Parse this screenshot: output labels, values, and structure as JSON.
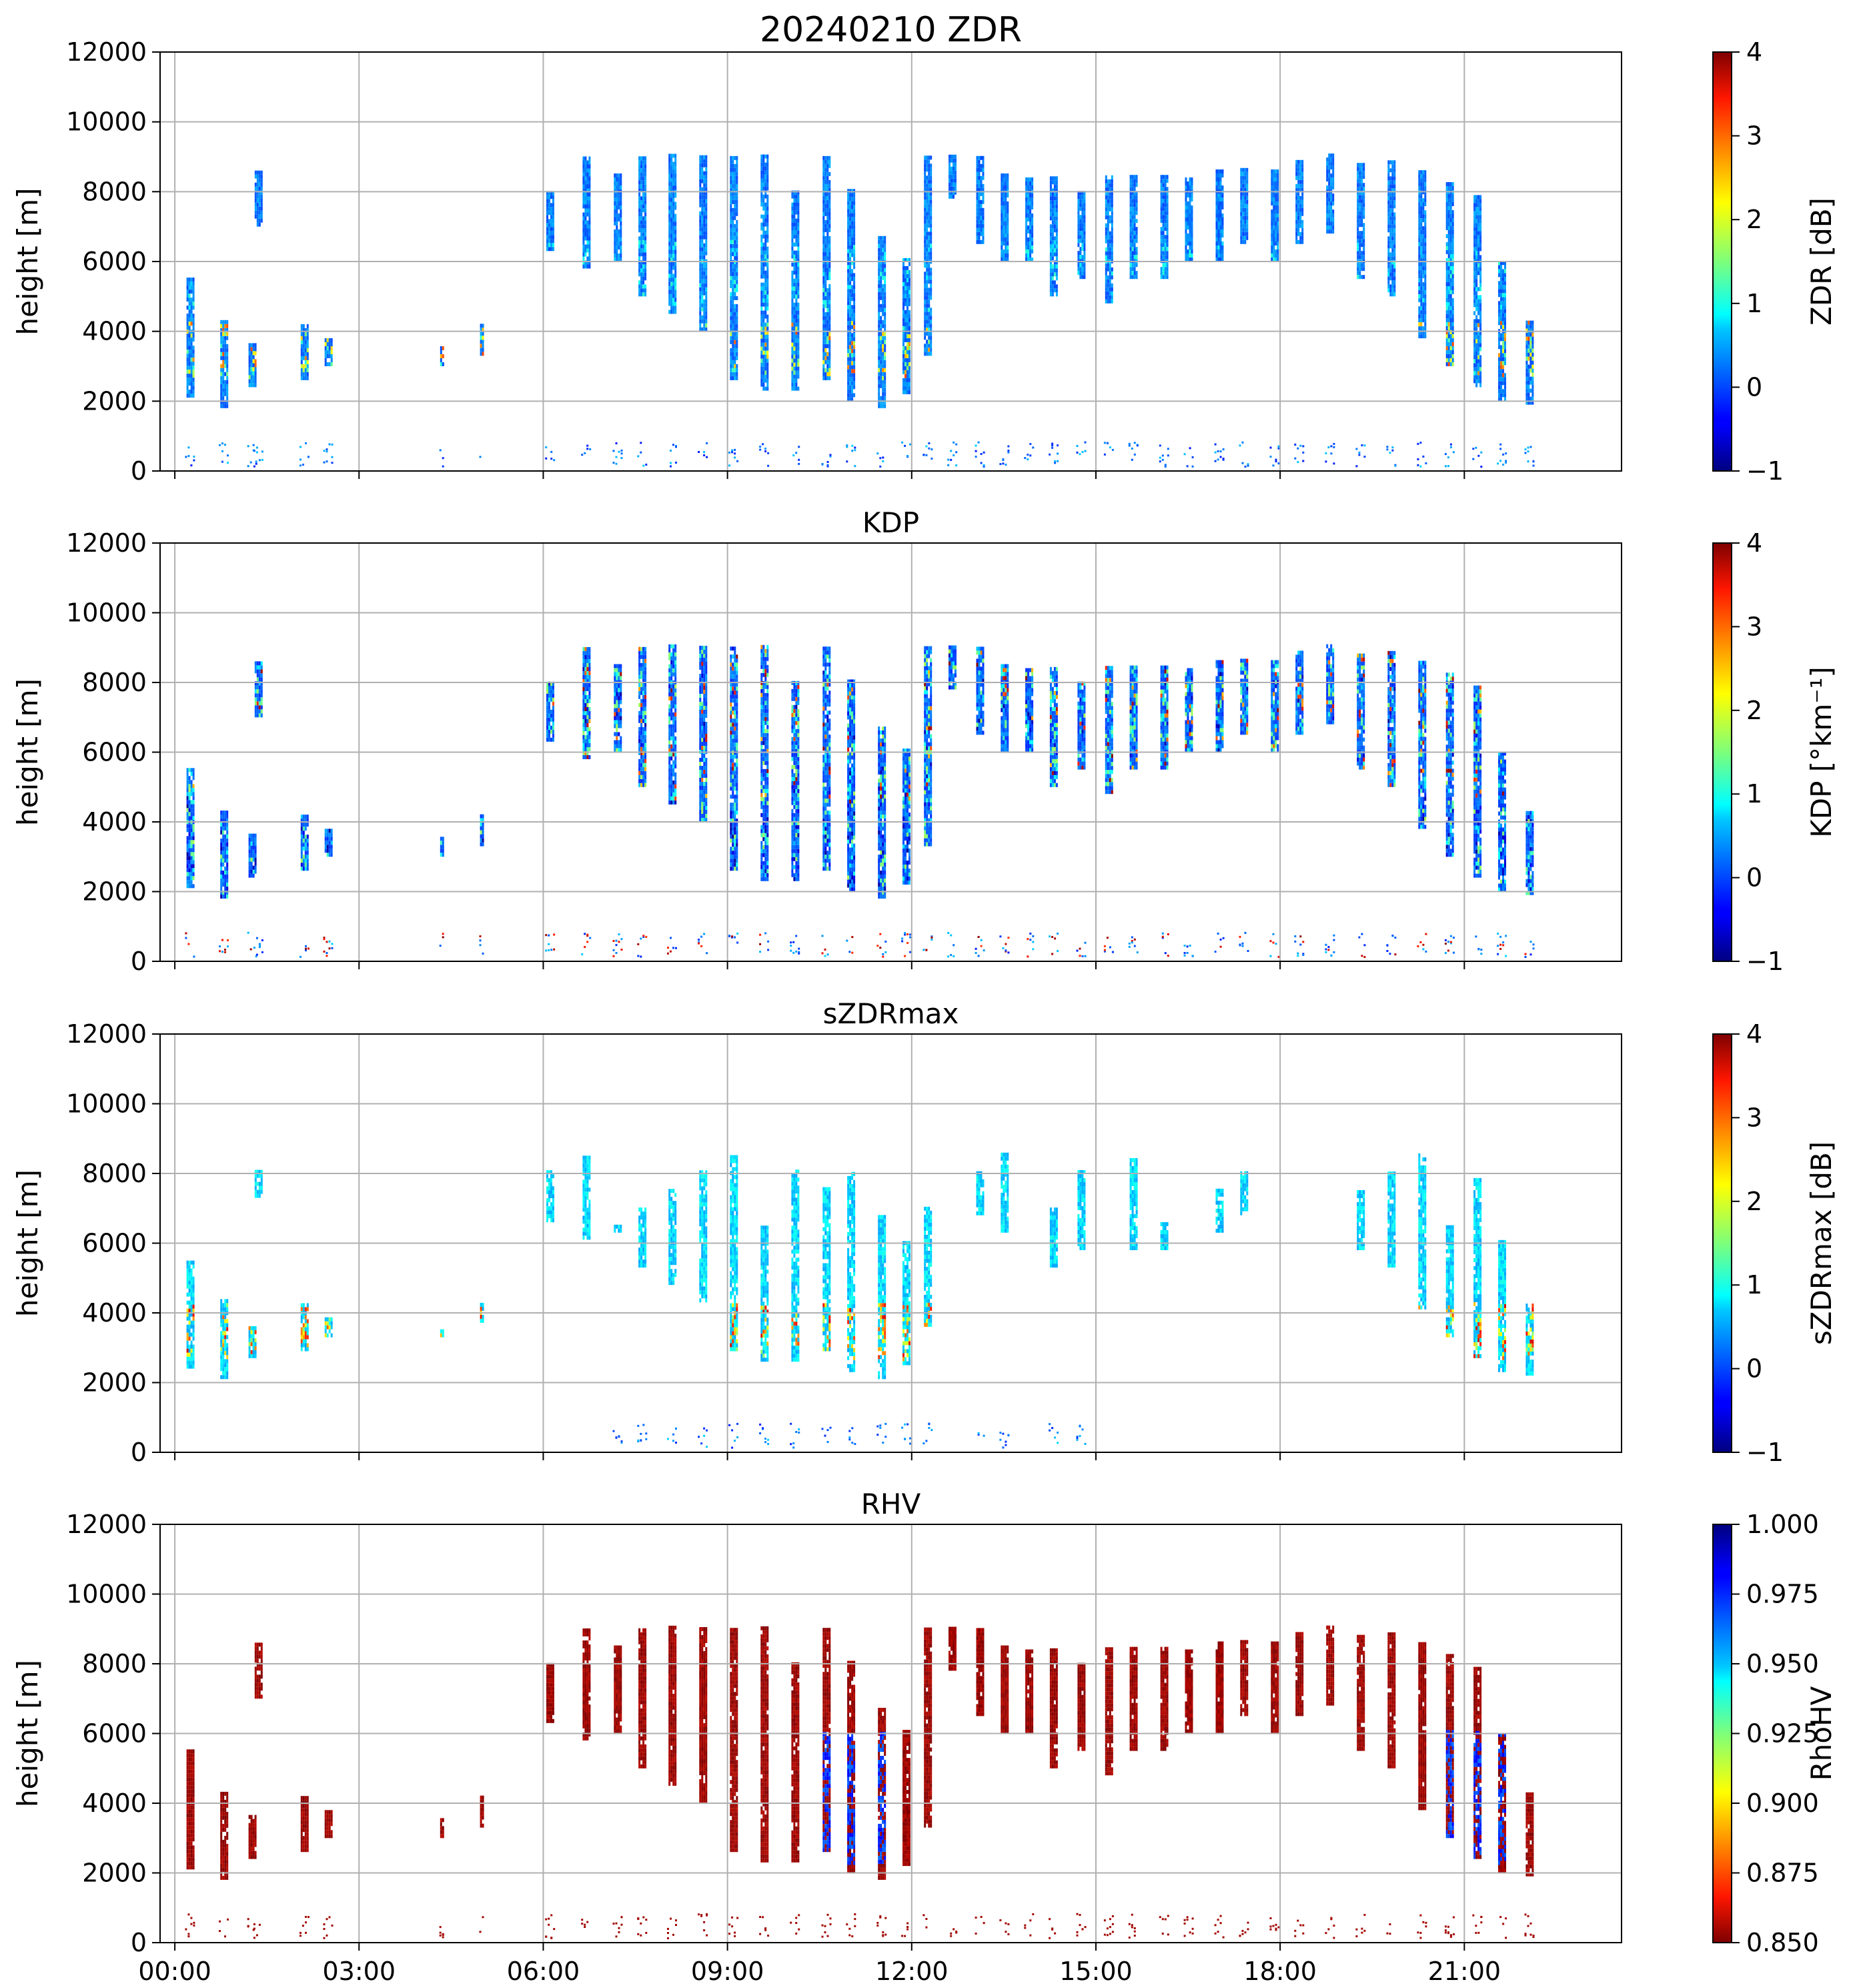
{
  "chart_data": [
    {
      "type": "heatmap",
      "title": "20240210 ZDR",
      "xlabel": "",
      "ylabel": "height [m]",
      "ylim": [
        0,
        12000
      ],
      "yticks": [
        "0",
        "2000",
        "4000",
        "6000",
        "8000",
        "10000",
        "12000"
      ],
      "colorbar": {
        "label": "ZDR [dB]",
        "colormap": "jet",
        "range": [
          -1,
          4
        ],
        "ticks": [
          "−1",
          "0",
          "1",
          "2",
          "3",
          "4"
        ]
      },
      "grid": true
    },
    {
      "type": "heatmap",
      "title": "KDP",
      "xlabel": "",
      "ylabel": "height [m]",
      "ylim": [
        0,
        12000
      ],
      "yticks": [
        "0",
        "2000",
        "4000",
        "6000",
        "8000",
        "10000",
        "12000"
      ],
      "colorbar": {
        "label": "KDP [°km⁻¹]",
        "colormap": "jet",
        "range": [
          -1,
          4
        ],
        "ticks": [
          "−1",
          "0",
          "1",
          "2",
          "3",
          "4"
        ]
      },
      "grid": true
    },
    {
      "type": "heatmap",
      "title": "sZDRmax",
      "xlabel": "",
      "ylabel": "height [m]",
      "ylim": [
        0,
        12000
      ],
      "yticks": [
        "0",
        "2000",
        "4000",
        "6000",
        "8000",
        "10000",
        "12000"
      ],
      "colorbar": {
        "label": "sZDRmax [dB]",
        "colormap": "jet",
        "range": [
          -1,
          4
        ],
        "ticks": [
          "−1",
          "0",
          "1",
          "2",
          "3",
          "4"
        ]
      },
      "grid": true
    },
    {
      "type": "heatmap",
      "title": "RHV",
      "xlabel": "",
      "ylabel": "height [m]",
      "ylim": [
        0,
        12000
      ],
      "yticks": [
        "0",
        "2000",
        "4000",
        "6000",
        "8000",
        "10000",
        "12000"
      ],
      "xticks": [
        "00:00",
        "03:00",
        "06:00",
        "09:00",
        "12:00",
        "15:00",
        "18:00",
        "21:00"
      ],
      "colorbar": {
        "label": "RhoHV",
        "colormap": "jet_r",
        "range": [
          0.85,
          1.0
        ],
        "ticks": [
          "0.850",
          "0.875",
          "0.900",
          "0.925",
          "0.950",
          "0.975",
          "1.000"
        ]
      },
      "grid": true
    }
  ]
}
